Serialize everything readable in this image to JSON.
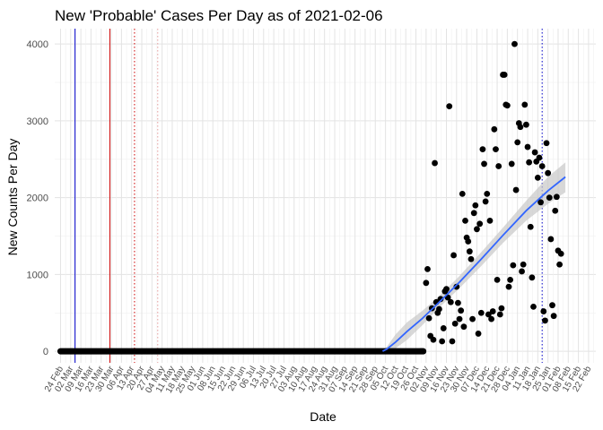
{
  "chart_data": {
    "type": "scatter",
    "title": "New 'Probable' Cases Per Day as of 2021-02-06",
    "xlabel": "Date",
    "ylabel": "New Counts Per Day",
    "x_axis_type": "date",
    "xlim": [
      "2020-02-20",
      "2021-02-27"
    ],
    "ylim": [
      -150,
      4200
    ],
    "y_ticks": [
      0,
      1000,
      2000,
      3000,
      4000
    ],
    "x_ticks": [
      {
        "date": "2020-02-24",
        "label": "24 Feb"
      },
      {
        "date": "2020-03-02",
        "label": "02 Mar"
      },
      {
        "date": "2020-03-09",
        "label": "09 Mar"
      },
      {
        "date": "2020-03-16",
        "label": "16 Mar"
      },
      {
        "date": "2020-03-23",
        "label": "23 Mar"
      },
      {
        "date": "2020-03-30",
        "label": "30 Mar"
      },
      {
        "date": "2020-04-06",
        "label": "06 Apr"
      },
      {
        "date": "2020-04-13",
        "label": "13 Apr"
      },
      {
        "date": "2020-04-20",
        "label": "20 Apr"
      },
      {
        "date": "2020-04-27",
        "label": "27 Apr"
      },
      {
        "date": "2020-05-04",
        "label": "04 May"
      },
      {
        "date": "2020-05-11",
        "label": "11 May"
      },
      {
        "date": "2020-05-18",
        "label": "18 May"
      },
      {
        "date": "2020-05-25",
        "label": "25 May"
      },
      {
        "date": "2020-06-01",
        "label": "01 Jun"
      },
      {
        "date": "2020-06-08",
        "label": "08 Jun"
      },
      {
        "date": "2020-06-15",
        "label": "15 Jun"
      },
      {
        "date": "2020-06-22",
        "label": "22 Jun"
      },
      {
        "date": "2020-06-29",
        "label": "29 Jun"
      },
      {
        "date": "2020-07-06",
        "label": "06 Jul"
      },
      {
        "date": "2020-07-13",
        "label": "13 Jul"
      },
      {
        "date": "2020-07-20",
        "label": "20 Jul"
      },
      {
        "date": "2020-07-27",
        "label": "27 Jul"
      },
      {
        "date": "2020-08-03",
        "label": "03 Aug"
      },
      {
        "date": "2020-08-10",
        "label": "10 Aug"
      },
      {
        "date": "2020-08-17",
        "label": "17 Aug"
      },
      {
        "date": "2020-08-24",
        "label": "24 Aug"
      },
      {
        "date": "2020-08-31",
        "label": "31 Aug"
      },
      {
        "date": "2020-09-07",
        "label": "07 Sep"
      },
      {
        "date": "2020-09-14",
        "label": "14 Sep"
      },
      {
        "date": "2020-09-21",
        "label": "21 Sep"
      },
      {
        "date": "2020-09-28",
        "label": "28 Sep"
      },
      {
        "date": "2020-10-05",
        "label": "05 Oct"
      },
      {
        "date": "2020-10-12",
        "label": "12 Oct"
      },
      {
        "date": "2020-10-19",
        "label": "19 Oct"
      },
      {
        "date": "2020-10-26",
        "label": "26 Oct"
      },
      {
        "date": "2020-11-02",
        "label": "02 Nov"
      },
      {
        "date": "2020-11-09",
        "label": "09 Nov"
      },
      {
        "date": "2020-11-16",
        "label": "16 Nov"
      },
      {
        "date": "2020-11-23",
        "label": "23 Nov"
      },
      {
        "date": "2020-11-30",
        "label": "30 Nov"
      },
      {
        "date": "2020-12-07",
        "label": "07 Dec"
      },
      {
        "date": "2020-12-14",
        "label": "14 Dec"
      },
      {
        "date": "2020-12-21",
        "label": "21 Dec"
      },
      {
        "date": "2020-12-28",
        "label": "28 Dec"
      },
      {
        "date": "2021-01-04",
        "label": "04 Jan"
      },
      {
        "date": "2021-01-11",
        "label": "11 Jan"
      },
      {
        "date": "2021-01-18",
        "label": "18 Jan"
      },
      {
        "date": "2021-01-25",
        "label": "25 Jan"
      },
      {
        "date": "2021-02-01",
        "label": "01 Feb"
      },
      {
        "date": "2021-02-08",
        "label": "08 Feb"
      },
      {
        "date": "2021-02-15",
        "label": "15 Feb"
      },
      {
        "date": "2021-02-22",
        "label": "22 Feb"
      }
    ],
    "grid": true,
    "zero_run": {
      "start": "2020-02-24",
      "end": "2020-10-31",
      "value": 0
    },
    "points": [
      {
        "x": "2020-10-29",
        "y": 0
      },
      {
        "x": "2020-10-30",
        "y": 0
      },
      {
        "x": "2020-10-31",
        "y": 0
      },
      {
        "x": "2020-11-02",
        "y": 890
      },
      {
        "x": "2020-11-03",
        "y": 1070
      },
      {
        "x": "2020-11-04",
        "y": 430
      },
      {
        "x": "2020-11-05",
        "y": 200
      },
      {
        "x": "2020-11-06",
        "y": 560
      },
      {
        "x": "2020-11-07",
        "y": 150
      },
      {
        "x": "2020-11-08",
        "y": 2450
      },
      {
        "x": "2020-11-09",
        "y": 640
      },
      {
        "x": "2020-11-10",
        "y": 500
      },
      {
        "x": "2020-11-11",
        "y": 550
      },
      {
        "x": "2020-11-12",
        "y": 680
      },
      {
        "x": "2020-11-13",
        "y": 130
      },
      {
        "x": "2020-11-14",
        "y": 300
      },
      {
        "x": "2020-11-15",
        "y": 780
      },
      {
        "x": "2020-11-16",
        "y": 810
      },
      {
        "x": "2020-11-17",
        "y": 700
      },
      {
        "x": "2020-11-18",
        "y": 3190
      },
      {
        "x": "2020-11-19",
        "y": 640
      },
      {
        "x": "2020-11-20",
        "y": 130
      },
      {
        "x": "2020-11-21",
        "y": 1250
      },
      {
        "x": "2020-11-22",
        "y": 360
      },
      {
        "x": "2020-11-23",
        "y": 840
      },
      {
        "x": "2020-11-24",
        "y": 630
      },
      {
        "x": "2020-11-25",
        "y": 420
      },
      {
        "x": "2020-11-26",
        "y": 530
      },
      {
        "x": "2020-11-27",
        "y": 2050
      },
      {
        "x": "2020-11-28",
        "y": 320
      },
      {
        "x": "2020-11-29",
        "y": 1700
      },
      {
        "x": "2020-11-30",
        "y": 1480
      },
      {
        "x": "2020-12-01",
        "y": 1430
      },
      {
        "x": "2020-12-02",
        "y": 1300
      },
      {
        "x": "2020-12-03",
        "y": 1200
      },
      {
        "x": "2020-12-04",
        "y": 420
      },
      {
        "x": "2020-12-05",
        "y": 1800
      },
      {
        "x": "2020-12-06",
        "y": 1900
      },
      {
        "x": "2020-12-07",
        "y": 1590
      },
      {
        "x": "2020-12-08",
        "y": 230
      },
      {
        "x": "2020-12-09",
        "y": 1660
      },
      {
        "x": "2020-12-10",
        "y": 500
      },
      {
        "x": "2020-12-11",
        "y": 2630
      },
      {
        "x": "2020-12-12",
        "y": 2440
      },
      {
        "x": "2020-12-13",
        "y": 1950
      },
      {
        "x": "2020-12-14",
        "y": 2050
      },
      {
        "x": "2020-12-15",
        "y": 480
      },
      {
        "x": "2020-12-16",
        "y": 1700
      },
      {
        "x": "2020-12-17",
        "y": 420
      },
      {
        "x": "2020-12-18",
        "y": 520
      },
      {
        "x": "2020-12-19",
        "y": 2890
      },
      {
        "x": "2020-12-20",
        "y": 2630
      },
      {
        "x": "2020-12-21",
        "y": 930
      },
      {
        "x": "2020-12-22",
        "y": 2410
      },
      {
        "x": "2020-12-23",
        "y": 480
      },
      {
        "x": "2020-12-24",
        "y": 560
      },
      {
        "x": "2020-12-25",
        "y": 3600
      },
      {
        "x": "2020-12-26",
        "y": 3600
      },
      {
        "x": "2020-12-27",
        "y": 3210
      },
      {
        "x": "2020-12-28",
        "y": 3200
      },
      {
        "x": "2020-12-29",
        "y": 840
      },
      {
        "x": "2020-12-30",
        "y": 930
      },
      {
        "x": "2020-12-31",
        "y": 2440
      },
      {
        "x": "2021-01-01",
        "y": 1120
      },
      {
        "x": "2021-01-02",
        "y": 4000
      },
      {
        "x": "2021-01-03",
        "y": 2100
      },
      {
        "x": "2021-01-04",
        "y": 2720
      },
      {
        "x": "2021-01-05",
        "y": 2970
      },
      {
        "x": "2021-01-06",
        "y": 2920
      },
      {
        "x": "2021-01-07",
        "y": 1040
      },
      {
        "x": "2021-01-08",
        "y": 1130
      },
      {
        "x": "2021-01-09",
        "y": 3210
      },
      {
        "x": "2021-01-10",
        "y": 2950
      },
      {
        "x": "2021-01-11",
        "y": 2660
      },
      {
        "x": "2021-01-12",
        "y": 2460
      },
      {
        "x": "2021-01-13",
        "y": 1620
      },
      {
        "x": "2021-01-14",
        "y": 960
      },
      {
        "x": "2021-01-15",
        "y": 580
      },
      {
        "x": "2021-01-16",
        "y": 2590
      },
      {
        "x": "2021-01-17",
        "y": 2470
      },
      {
        "x": "2021-01-18",
        "y": 2260
      },
      {
        "x": "2021-01-19",
        "y": 2520
      },
      {
        "x": "2021-01-20",
        "y": 1940
      },
      {
        "x": "2021-01-21",
        "y": 2410
      },
      {
        "x": "2021-01-22",
        "y": 520
      },
      {
        "x": "2021-01-23",
        "y": 400
      },
      {
        "x": "2021-01-24",
        "y": 2710
      },
      {
        "x": "2021-01-25",
        "y": 2320
      },
      {
        "x": "2021-01-26",
        "y": 2000
      },
      {
        "x": "2021-01-27",
        "y": 1460
      },
      {
        "x": "2021-01-28",
        "y": 600
      },
      {
        "x": "2021-01-29",
        "y": 460
      },
      {
        "x": "2021-01-30",
        "y": 1830
      },
      {
        "x": "2021-01-31",
        "y": 2010
      },
      {
        "x": "2021-02-01",
        "y": 1310
      },
      {
        "x": "2021-02-02",
        "y": 1130
      },
      {
        "x": "2021-02-03",
        "y": 1270
      }
    ],
    "trend": {
      "color": "#3366ff",
      "start": "2020-10-03",
      "points": [
        {
          "x": "2020-10-03",
          "y": 0,
          "lo": 0,
          "hi": 0
        },
        {
          "x": "2020-10-06",
          "y": 30,
          "lo": 0,
          "hi": 60
        },
        {
          "x": "2020-10-12",
          "y": 120,
          "lo": 40,
          "hi": 220
        },
        {
          "x": "2020-10-20",
          "y": 260,
          "lo": 150,
          "hi": 380
        },
        {
          "x": "2020-10-30",
          "y": 420,
          "lo": 330,
          "hi": 520
        },
        {
          "x": "2020-11-10",
          "y": 620,
          "lo": 550,
          "hi": 700
        },
        {
          "x": "2020-11-25",
          "y": 900,
          "lo": 820,
          "hi": 980
        },
        {
          "x": "2020-12-10",
          "y": 1200,
          "lo": 1110,
          "hi": 1290
        },
        {
          "x": "2020-12-25",
          "y": 1510,
          "lo": 1410,
          "hi": 1610
        },
        {
          "x": "2021-01-10",
          "y": 1830,
          "lo": 1700,
          "hi": 1960
        },
        {
          "x": "2021-01-25",
          "y": 2090,
          "lo": 1920,
          "hi": 2270
        },
        {
          "x": "2021-02-06",
          "y": 2270,
          "lo": 2070,
          "hi": 2460
        }
      ]
    },
    "reference_lines": [
      {
        "date": "2020-03-05",
        "color": "#0000cc",
        "style": "solid"
      },
      {
        "date": "2020-03-29",
        "color": "#cc0000",
        "style": "solid"
      },
      {
        "date": "2020-04-15",
        "color": "#cc0000",
        "style": "dotted"
      },
      {
        "date": "2020-05-01",
        "color": "#e8a0a0",
        "style": "dotted"
      },
      {
        "date": "2021-01-21",
        "color": "#0000cc",
        "style": "dotted"
      }
    ]
  }
}
